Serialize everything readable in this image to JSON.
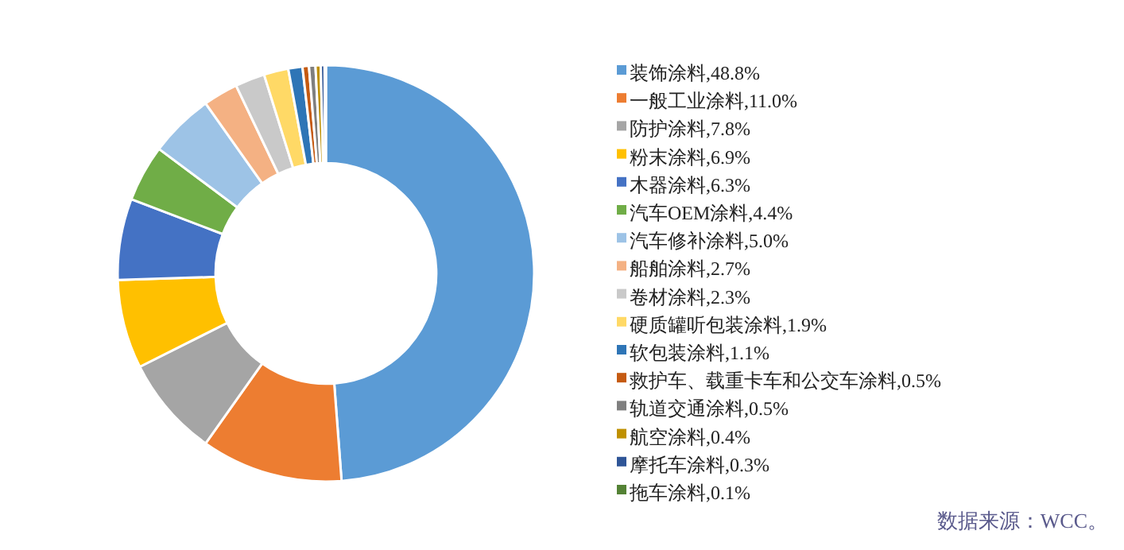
{
  "chart_data": {
    "type": "donut",
    "categories": [
      "装饰涂料,48.8%",
      "一般工业涂料,11.0%",
      "防护涂料,7.8%",
      "粉末涂料,6.9%",
      "木器涂料,6.3%",
      "汽车OEM涂料,4.4%",
      "汽车修补涂料,5.0%",
      "船舶涂料,2.7%",
      "卷材涂料,2.3%",
      "硬质罐听包装涂料,1.9%",
      "软包装涂料,1.1%",
      "救护车、载重卡车和公交车涂料,0.5%",
      "轨道交通涂料,0.5%",
      "航空涂料,0.4%",
      "摩托车涂料,0.3%",
      "拖车涂料,0.1%"
    ],
    "values": [
      48.8,
      11.0,
      7.8,
      6.9,
      6.3,
      4.4,
      5.0,
      2.7,
      2.3,
      1.9,
      1.1,
      0.5,
      0.5,
      0.4,
      0.3,
      0.1
    ],
    "colors": [
      "#5b9bd5",
      "#ed7d31",
      "#a5a5a5",
      "#ffc000",
      "#4472c4",
      "#70ad47",
      "#9dc3e6",
      "#f4b183",
      "#c9c9c9",
      "#ffd966",
      "#2e75b6",
      "#c55a11",
      "#7f7f7f",
      "#bf9000",
      "#2f5597",
      "#548235"
    ],
    "legend": "right",
    "annotations": [
      "数据来源：WCC。"
    ]
  }
}
